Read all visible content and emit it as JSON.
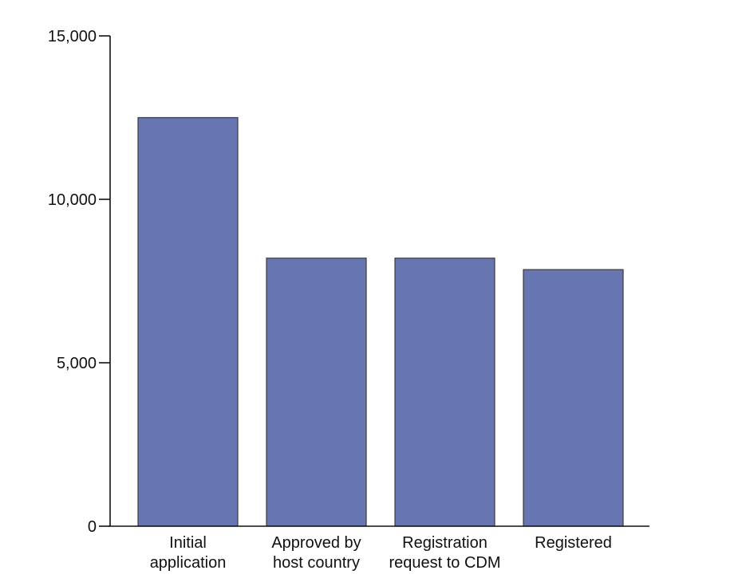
{
  "chart_data": {
    "type": "bar",
    "title": "",
    "xlabel": "",
    "ylabel": "",
    "categories": [
      [
        "Initial",
        "application"
      ],
      [
        "Approved by",
        "host country"
      ],
      [
        "Registration",
        "request to CDM"
      ],
      [
        "Registered"
      ]
    ],
    "values": [
      12500,
      8200,
      8200,
      7850
    ],
    "ylim": [
      0,
      15000
    ],
    "yticks": [
      0,
      5000,
      10000,
      15000
    ],
    "ytick_labels": [
      "0",
      "5,000",
      "10,000",
      "15,000"
    ],
    "grid": false,
    "legend": "none",
    "colors": {
      "bar_fill": "#6776b1",
      "bar_stroke": "#3a3a3a",
      "axis": "#111111"
    }
  }
}
